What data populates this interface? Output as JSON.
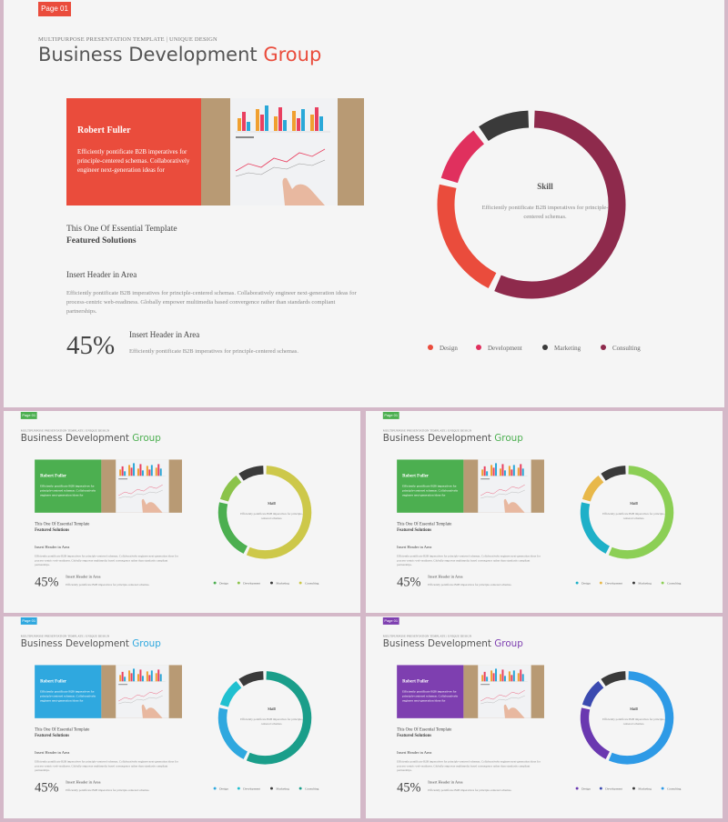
{
  "content": {
    "subtitle": "MULTIPURPOSE PRESENTATION TEMPLATE | UNIQUE DESIGN",
    "title_main": "Business Development",
    "title_accent": "Group",
    "card_name": "Robert Fuller",
    "card_text": "Efficiently pontificate B2B imperatives for principle-centered schemas. Collaboratively engineer next-generation ideas for",
    "essential_line1": "This One Of Essential  Template",
    "essential_line2": "Featured Solutions",
    "header1": "Insert Header  in Area",
    "body1": "Efficiently pontificate B2B imperatives for principle-centered schemas. Collaboratively engineer next-generation ideas for process-centric web-readiness. Globally empower multimedia based convergence rather than standards compliant partnerships.",
    "percent": "45%",
    "header2": "Insert Header  in Area",
    "body2": "Efficiently pontificate B2B imperatives for principle-centered schemas.",
    "skill_title": "Skill",
    "skill_text": "Efficiently pontificate B2B imperatives for principle-centered schemas.",
    "legend": [
      "Design",
      "Development",
      "Marketing",
      "Consulting"
    ]
  },
  "slides": [
    {
      "page_label": "Page 01",
      "accent": "#ea4c3c",
      "segments": [
        {
          "name": "Design",
          "color": "#ea4c3c",
          "value": 22
        },
        {
          "name": "Development",
          "color": "#e0305e",
          "value": 11
        },
        {
          "name": "Marketing",
          "color": "#3a3a3a",
          "value": 10
        },
        {
          "name": "Consulting",
          "color": "#8e2a4c",
          "value": 57
        }
      ]
    },
    {
      "page_label": "Page 01",
      "accent": "#4caf50",
      "segments": [
        {
          "name": "Design",
          "color": "#4caf50",
          "value": 22
        },
        {
          "name": "Development",
          "color": "#8bc34a",
          "value": 11
        },
        {
          "name": "Marketing",
          "color": "#3a3a3a",
          "value": 10
        },
        {
          "name": "Consulting",
          "color": "#cdc84a",
          "value": 57
        }
      ]
    },
    {
      "page_label": "Page 01",
      "accent": "#4caf50",
      "segments": [
        {
          "name": "Design",
          "color": "#1eb0c8",
          "value": 22
        },
        {
          "name": "Development",
          "color": "#e8b84a",
          "value": 11
        },
        {
          "name": "Marketing",
          "color": "#3a3a3a",
          "value": 10
        },
        {
          "name": "Consulting",
          "color": "#8ccf55",
          "value": 57
        }
      ]
    },
    {
      "page_label": "Page 01",
      "accent": "#2fa8df",
      "segments": [
        {
          "name": "Design",
          "color": "#2fa8df",
          "value": 22
        },
        {
          "name": "Development",
          "color": "#20c0d0",
          "value": 11
        },
        {
          "name": "Marketing",
          "color": "#3a3a3a",
          "value": 10
        },
        {
          "name": "Consulting",
          "color": "#1a9e8a",
          "value": 57
        }
      ]
    },
    {
      "page_label": "Page 01",
      "accent": "#7e3fb0",
      "segments": [
        {
          "name": "Design",
          "color": "#6a38b0",
          "value": 22
        },
        {
          "name": "Development",
          "color": "#3b4ab0",
          "value": 11
        },
        {
          "name": "Marketing",
          "color": "#3a3a3a",
          "value": 10
        },
        {
          "name": "Consulting",
          "color": "#2e9ae6",
          "value": 57
        }
      ]
    }
  ]
}
